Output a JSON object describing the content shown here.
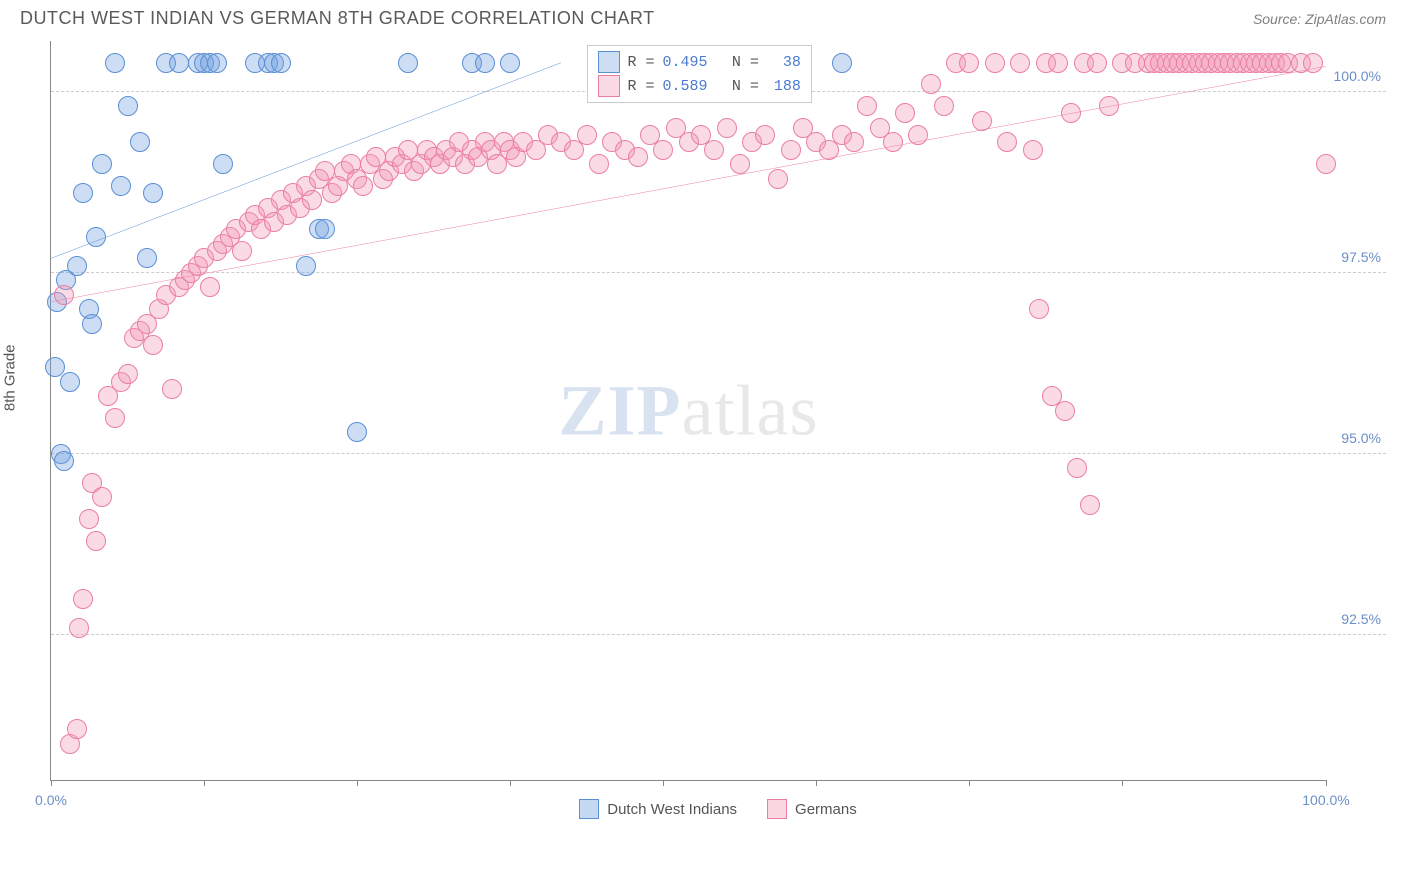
{
  "title": "DUTCH WEST INDIAN VS GERMAN 8TH GRADE CORRELATION CHART",
  "source": "Source: ZipAtlas.com",
  "watermark_zip": "ZIP",
  "watermark_atlas": "atlas",
  "ylabel": "8th Grade",
  "chart": {
    "type": "scatter",
    "background_color": "#ffffff",
    "grid_color": "#cccccc",
    "axis_color": "#888888",
    "xlim": [
      0,
      100
    ],
    "ylim": [
      90.5,
      100.7
    ],
    "xticks": [
      0,
      12,
      24,
      36,
      48,
      60,
      72,
      84,
      100
    ],
    "xtick_labels": {
      "0": "0.0%",
      "100": "100.0%"
    },
    "yticks": [
      92.5,
      95.0,
      97.5,
      100.0
    ],
    "ytick_labels": [
      "92.5%",
      "95.0%",
      "97.5%",
      "100.0%"
    ],
    "marker_radius": 10,
    "marker_opacity": 0.45,
    "series": [
      {
        "name": "Dutch West Indians",
        "color": "#6fa0e0",
        "fill": "rgba(111,160,224,0.35)",
        "stroke": "#5b8fd6",
        "R": "0.495",
        "N": "38",
        "trend": {
          "x1": 0,
          "y1": 97.7,
          "x2": 40,
          "y2": 100.4,
          "width": 2
        },
        "points": [
          [
            0.5,
            97.1
          ],
          [
            0.8,
            95.0
          ],
          [
            1.0,
            94.9
          ],
          [
            1.2,
            97.4
          ],
          [
            1.5,
            96.0
          ],
          [
            2.0,
            97.6
          ],
          [
            2.5,
            98.6
          ],
          [
            3.0,
            97.0
          ],
          [
            3.2,
            96.8
          ],
          [
            3.5,
            98.0
          ],
          [
            4.0,
            99.0
          ],
          [
            5.0,
            100.4
          ],
          [
            5.5,
            98.7
          ],
          [
            6.0,
            99.8
          ],
          [
            7.0,
            99.3
          ],
          [
            7.5,
            97.7
          ],
          [
            8.0,
            98.6
          ],
          [
            9.0,
            100.4
          ],
          [
            10.0,
            100.4
          ],
          [
            11.5,
            100.4
          ],
          [
            12.0,
            100.4
          ],
          [
            12.5,
            100.4
          ],
          [
            13.0,
            100.4
          ],
          [
            13.5,
            99.0
          ],
          [
            16.0,
            100.4
          ],
          [
            17.0,
            100.4
          ],
          [
            17.5,
            100.4
          ],
          [
            18.0,
            100.4
          ],
          [
            20.0,
            97.6
          ],
          [
            21.0,
            98.1
          ],
          [
            21.5,
            98.1
          ],
          [
            24.0,
            95.3
          ],
          [
            28.0,
            100.4
          ],
          [
            33.0,
            100.4
          ],
          [
            34.0,
            100.4
          ],
          [
            36.0,
            100.4
          ],
          [
            62.0,
            100.4
          ],
          [
            0.3,
            96.2
          ]
        ]
      },
      {
        "name": "Germans",
        "color": "#f299b5",
        "fill": "rgba(242,153,181,0.35)",
        "stroke": "#eb7fa2",
        "R": "0.589",
        "N": "188",
        "trend": {
          "x1": 0,
          "y1": 97.1,
          "x2": 100,
          "y2": 100.35,
          "width": 2
        },
        "points": [
          [
            1.0,
            97.2
          ],
          [
            1.5,
            91.0
          ],
          [
            2.0,
            91.2
          ],
          [
            2.2,
            92.6
          ],
          [
            2.5,
            93.0
          ],
          [
            3.0,
            94.1
          ],
          [
            3.2,
            94.6
          ],
          [
            3.5,
            93.8
          ],
          [
            4.0,
            94.4
          ],
          [
            4.5,
            95.8
          ],
          [
            5.0,
            95.5
          ],
          [
            5.5,
            96.0
          ],
          [
            6.0,
            96.1
          ],
          [
            6.5,
            96.6
          ],
          [
            7.0,
            96.7
          ],
          [
            7.5,
            96.8
          ],
          [
            8.0,
            96.5
          ],
          [
            8.5,
            97.0
          ],
          [
            9.0,
            97.2
          ],
          [
            9.5,
            95.9
          ],
          [
            10.0,
            97.3
          ],
          [
            10.5,
            97.4
          ],
          [
            11.0,
            97.5
          ],
          [
            11.5,
            97.6
          ],
          [
            12.0,
            97.7
          ],
          [
            12.5,
            97.3
          ],
          [
            13.0,
            97.8
          ],
          [
            13.5,
            97.9
          ],
          [
            14.0,
            98.0
          ],
          [
            14.5,
            98.1
          ],
          [
            15.0,
            97.8
          ],
          [
            15.5,
            98.2
          ],
          [
            16.0,
            98.3
          ],
          [
            16.5,
            98.1
          ],
          [
            17.0,
            98.4
          ],
          [
            17.5,
            98.2
          ],
          [
            18.0,
            98.5
          ],
          [
            18.5,
            98.3
          ],
          [
            19.0,
            98.6
          ],
          [
            19.5,
            98.4
          ],
          [
            20.0,
            98.7
          ],
          [
            20.5,
            98.5
          ],
          [
            21.0,
            98.8
          ],
          [
            21.5,
            98.9
          ],
          [
            22.0,
            98.6
          ],
          [
            22.5,
            98.7
          ],
          [
            23.0,
            98.9
          ],
          [
            23.5,
            99.0
          ],
          [
            24.0,
            98.8
          ],
          [
            24.5,
            98.7
          ],
          [
            25.0,
            99.0
          ],
          [
            25.5,
            99.1
          ],
          [
            26.0,
            98.8
          ],
          [
            26.5,
            98.9
          ],
          [
            27.0,
            99.1
          ],
          [
            27.5,
            99.0
          ],
          [
            28.0,
            99.2
          ],
          [
            28.5,
            98.9
          ],
          [
            29.0,
            99.0
          ],
          [
            29.5,
            99.2
          ],
          [
            30.0,
            99.1
          ],
          [
            30.5,
            99.0
          ],
          [
            31.0,
            99.2
          ],
          [
            31.5,
            99.1
          ],
          [
            32.0,
            99.3
          ],
          [
            32.5,
            99.0
          ],
          [
            33.0,
            99.2
          ],
          [
            33.5,
            99.1
          ],
          [
            34.0,
            99.3
          ],
          [
            34.5,
            99.2
          ],
          [
            35.0,
            99.0
          ],
          [
            35.5,
            99.3
          ],
          [
            36.0,
            99.2
          ],
          [
            36.5,
            99.1
          ],
          [
            37.0,
            99.3
          ],
          [
            38.0,
            99.2
          ],
          [
            39.0,
            99.4
          ],
          [
            40.0,
            99.3
          ],
          [
            41.0,
            99.2
          ],
          [
            42.0,
            99.4
          ],
          [
            43.0,
            99.0
          ],
          [
            44.0,
            99.3
          ],
          [
            45.0,
            99.2
          ],
          [
            46.0,
            99.1
          ],
          [
            47.0,
            99.4
          ],
          [
            48.0,
            99.2
          ],
          [
            49.0,
            99.5
          ],
          [
            50.0,
            99.3
          ],
          [
            51.0,
            99.4
          ],
          [
            52.0,
            99.2
          ],
          [
            53.0,
            99.5
          ],
          [
            54.0,
            99.0
          ],
          [
            55.0,
            99.3
          ],
          [
            56.0,
            99.4
          ],
          [
            57.0,
            98.8
          ],
          [
            58.0,
            99.2
          ],
          [
            59.0,
            99.5
          ],
          [
            60.0,
            99.3
          ],
          [
            61.0,
            99.2
          ],
          [
            62.0,
            99.4
          ],
          [
            63.0,
            99.3
          ],
          [
            64.0,
            99.8
          ],
          [
            65.0,
            99.5
          ],
          [
            66.0,
            99.3
          ],
          [
            67.0,
            99.7
          ],
          [
            68.0,
            99.4
          ],
          [
            69.0,
            100.1
          ],
          [
            70.0,
            99.8
          ],
          [
            71.0,
            100.4
          ],
          [
            72.0,
            100.4
          ],
          [
            73.0,
            99.6
          ],
          [
            74.0,
            100.4
          ],
          [
            75.0,
            99.3
          ],
          [
            76.0,
            100.4
          ],
          [
            77.0,
            99.2
          ],
          [
            77.5,
            97.0
          ],
          [
            78.0,
            100.4
          ],
          [
            78.5,
            95.8
          ],
          [
            79.0,
            100.4
          ],
          [
            79.5,
            95.6
          ],
          [
            80.0,
            99.7
          ],
          [
            80.5,
            94.8
          ],
          [
            81.0,
            100.4
          ],
          [
            81.5,
            94.3
          ],
          [
            82.0,
            100.4
          ],
          [
            83.0,
            99.8
          ],
          [
            84.0,
            100.4
          ],
          [
            85.0,
            100.4
          ],
          [
            86.0,
            100.4
          ],
          [
            86.5,
            100.4
          ],
          [
            87.0,
            100.4
          ],
          [
            87.5,
            100.4
          ],
          [
            88.0,
            100.4
          ],
          [
            88.5,
            100.4
          ],
          [
            89.0,
            100.4
          ],
          [
            89.5,
            100.4
          ],
          [
            90.0,
            100.4
          ],
          [
            90.5,
            100.4
          ],
          [
            91.0,
            100.4
          ],
          [
            91.5,
            100.4
          ],
          [
            92.0,
            100.4
          ],
          [
            92.5,
            100.4
          ],
          [
            93.0,
            100.4
          ],
          [
            93.5,
            100.4
          ],
          [
            94.0,
            100.4
          ],
          [
            94.5,
            100.4
          ],
          [
            95.0,
            100.4
          ],
          [
            95.5,
            100.4
          ],
          [
            96.0,
            100.4
          ],
          [
            96.5,
            100.4
          ],
          [
            97.0,
            100.4
          ],
          [
            98.0,
            100.4
          ],
          [
            99.0,
            100.4
          ],
          [
            100.0,
            99.0
          ]
        ]
      }
    ]
  },
  "legend_top": {
    "r_label": "R =",
    "n_label": "N ="
  },
  "legend_bottom": [
    {
      "label": "Dutch West Indians",
      "fill": "rgba(111,160,224,0.4)",
      "stroke": "#5b8fd6"
    },
    {
      "label": "Germans",
      "fill": "rgba(242,153,181,0.4)",
      "stroke": "#eb7fa2"
    }
  ]
}
